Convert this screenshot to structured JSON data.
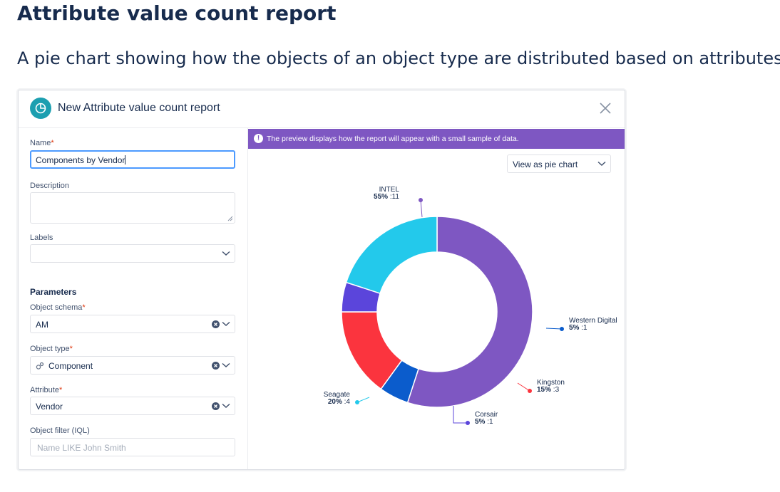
{
  "page": {
    "title": "Attribute value count report",
    "subtitle": "A pie chart showing how the objects of an object type are distributed based on attributes."
  },
  "dialog": {
    "title": "New Attribute value count report",
    "form": {
      "name_label": "Name",
      "name_value": "Components by Vendor",
      "description_label": "Description",
      "description_value": "",
      "labels_label": "Labels",
      "parameters_heading": "Parameters",
      "object_schema_label": "Object schema",
      "object_schema_value": "AM",
      "object_type_label": "Object type",
      "object_type_value": "Component",
      "attribute_label": "Attribute",
      "attribute_value": "Vendor",
      "object_filter_label": "Object filter (IQL)",
      "object_filter_placeholder": "Name LIKE John Smith",
      "required_marker": "*"
    },
    "preview": {
      "banner_text": "The preview displays how the report will appear with a small sample of data.",
      "banner_icon": "exclamation-icon",
      "view_select_value": "View as pie chart"
    }
  },
  "chart_data": {
    "type": "pie",
    "donut": true,
    "slices": [
      {
        "name": "INTEL",
        "percent": 55,
        "count": 11,
        "pct_label": "55%",
        "count_label": ":11",
        "color": "#7e57c2"
      },
      {
        "name": "Western Digital",
        "percent": 5,
        "count": 1,
        "pct_label": "5%",
        "count_label": ":1",
        "color": "#0b5ccc"
      },
      {
        "name": "Kingston",
        "percent": 15,
        "count": 3,
        "pct_label": "15%",
        "count_label": ":3",
        "color": "#fb343e"
      },
      {
        "name": "Corsair",
        "percent": 5,
        "count": 1,
        "pct_label": "5%",
        "count_label": ":1",
        "color": "#5b45db"
      },
      {
        "name": "Seagate",
        "percent": 20,
        "count": 4,
        "pct_label": "20%",
        "count_label": ":4",
        "color": "#23c9eb"
      }
    ]
  },
  "colors": {
    "accent": "#7e57c2",
    "dialog_icon": "#1c9fb0",
    "focus_border": "#4c9aff"
  }
}
